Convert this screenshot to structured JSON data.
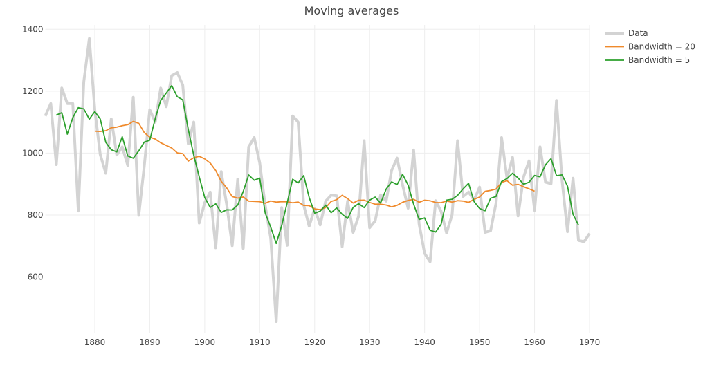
{
  "chart_data": {
    "type": "line",
    "title": "Moving averages",
    "xlabel": "",
    "ylabel": "",
    "xlim": [
      1871,
      1970
    ],
    "ylim": [
      418,
      1414
    ],
    "grid": true,
    "legend_position": "top-right",
    "x_ticks": [
      1880,
      1890,
      1900,
      1910,
      1920,
      1930,
      1940,
      1950,
      1960,
      1970
    ],
    "y_ticks": [
      600,
      800,
      1000,
      1200,
      1400
    ],
    "x_start": 1871,
    "series": [
      {
        "name": "Data",
        "color": "#d3d3d3",
        "values": [
          1120,
          1160,
          963,
          1210,
          1160,
          1160,
          813,
          1230,
          1370,
          1140,
          995,
          935,
          1110,
          994,
          1020,
          960,
          1180,
          799,
          958,
          1140,
          1100,
          1210,
          1150,
          1250,
          1260,
          1220,
          1030,
          1100,
          774,
          840,
          874,
          694,
          940,
          833,
          701,
          916,
          692,
          1020,
          1050,
          969,
          831,
          726,
          456,
          824,
          702,
          1120,
          1100,
          832,
          764,
          821,
          768,
          845,
          864,
          862,
          698,
          845,
          744,
          796,
          1040,
          759,
          781,
          865,
          845,
          944,
          984,
          897,
          822,
          1010,
          771,
          676,
          649,
          846,
          812,
          742,
          801,
          1040,
          860,
          874,
          848,
          890,
          744,
          749,
          838,
          1050,
          918,
          986,
          797,
          923,
          975,
          815,
          1020,
          906,
          901,
          1170,
          912,
          746,
          919,
          718,
          714,
          740
        ]
      },
      {
        "name": "Bandwidth = 20",
        "color": "#ef8a2c",
        "bandwidth": 20
      },
      {
        "name": "Bandwidth = 5",
        "color": "#2ca02c",
        "bandwidth": 5
      }
    ]
  }
}
